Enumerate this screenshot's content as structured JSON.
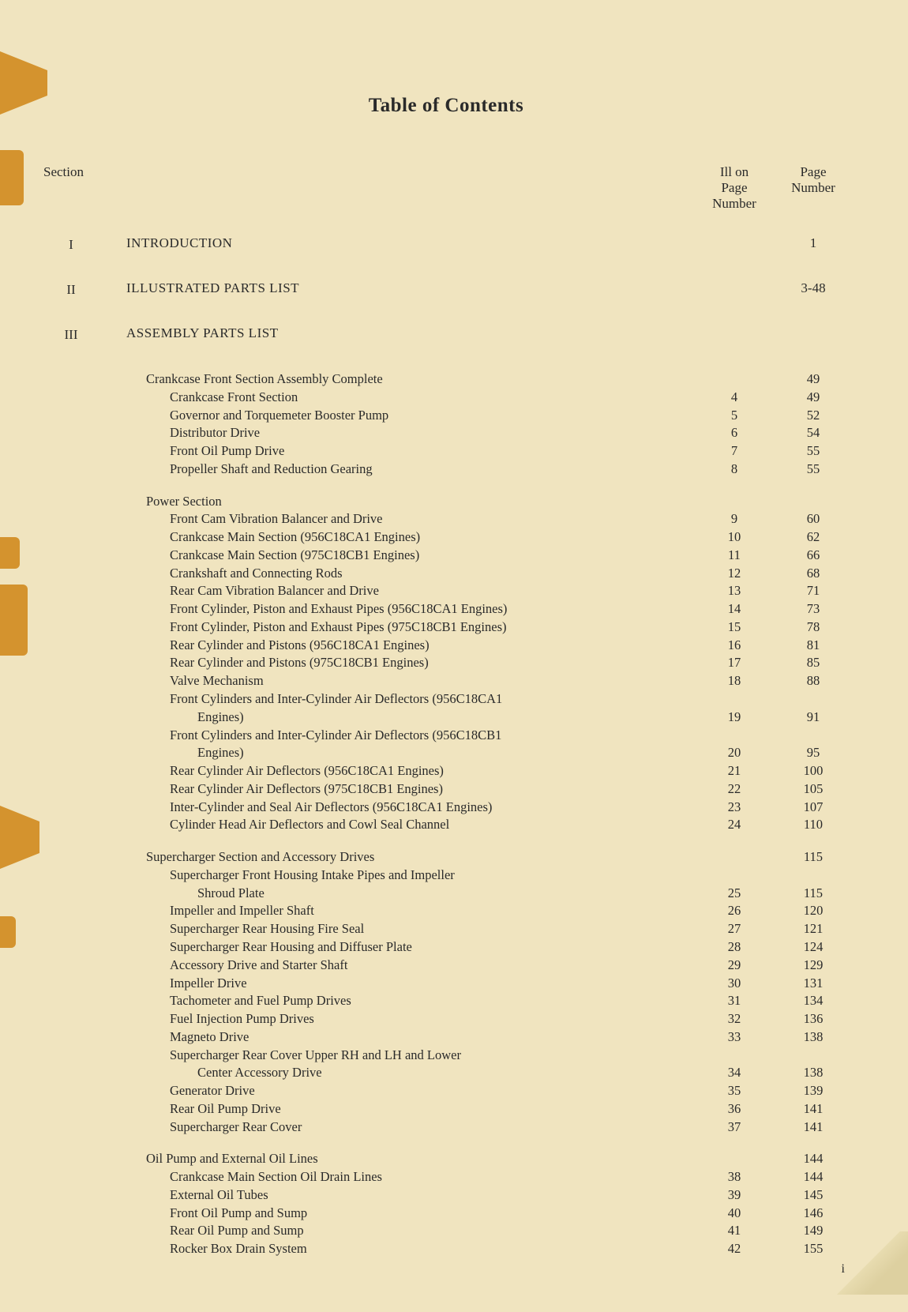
{
  "title": "Table of Contents",
  "headers": {
    "section": "Section",
    "ill": "Ill on\nPage\nNumber",
    "page": "Page\nNumber"
  },
  "sections": [
    {
      "num": "I",
      "title": "INTRODUCTION",
      "page": "1"
    },
    {
      "num": "II",
      "title": "ILLUSTRATED PARTS LIST",
      "page": "3-48"
    },
    {
      "num": "III",
      "title": "ASSEMBLY PARTS LIST",
      "page": ""
    }
  ],
  "groups": [
    {
      "heading": {
        "title": "Crankcase Front Section Assembly Complete",
        "ill": "",
        "page": "49"
      },
      "items": [
        {
          "title": "Crankcase Front Section",
          "ill": "4",
          "page": "49"
        },
        {
          "title": "Governor and Torquemeter Booster Pump",
          "ill": "5",
          "page": "52"
        },
        {
          "title": "Distributor Drive",
          "ill": "6",
          "page": "54"
        },
        {
          "title": "Front Oil Pump Drive",
          "ill": "7",
          "page": "55"
        },
        {
          "title": "Propeller Shaft and Reduction Gearing",
          "ill": "8",
          "page": "55"
        }
      ]
    },
    {
      "heading": {
        "title": "Power Section",
        "ill": "",
        "page": ""
      },
      "items": [
        {
          "title": "Front Cam Vibration Balancer and Drive",
          "ill": "9",
          "page": "60"
        },
        {
          "title": "Crankcase Main Section (956C18CA1 Engines)",
          "ill": "10",
          "page": "62"
        },
        {
          "title": "Crankcase Main Section (975C18CB1 Engines)",
          "ill": "11",
          "page": "66"
        },
        {
          "title": "Crankshaft and Connecting Rods",
          "ill": "12",
          "page": "68"
        },
        {
          "title": "Rear Cam Vibration Balancer and Drive",
          "ill": "13",
          "page": "71"
        },
        {
          "title": "Front Cylinder, Piston and Exhaust Pipes (956C18CA1 Engines)",
          "ill": "14",
          "page": "73"
        },
        {
          "title": "Front Cylinder, Piston and Exhaust Pipes (975C18CB1 Engines)",
          "ill": "15",
          "page": "78"
        },
        {
          "title": "Rear Cylinder and Pistons (956C18CA1 Engines)",
          "ill": "16",
          "page": "81"
        },
        {
          "title": "Rear Cylinder and Pistons (975C18CB1 Engines)",
          "ill": "17",
          "page": "85"
        },
        {
          "title": "Valve Mechanism",
          "ill": "18",
          "page": "88"
        },
        {
          "title": "Front Cylinders and Inter-Cylinder Air Deflectors (956C18CA1",
          "cont": "Engines)",
          "ill": "19",
          "page": "91"
        },
        {
          "title": "Front Cylinders and Inter-Cylinder Air Deflectors (956C18CB1",
          "cont": "Engines)",
          "ill": "20",
          "page": "95"
        },
        {
          "title": "Rear Cylinder Air Deflectors (956C18CA1 Engines)",
          "ill": "21",
          "page": "100"
        },
        {
          "title": "Rear Cylinder Air Deflectors (975C18CB1 Engines)",
          "ill": "22",
          "page": "105"
        },
        {
          "title": "Inter-Cylinder and Seal Air Deflectors (956C18CA1 Engines)",
          "ill": "23",
          "page": "107"
        },
        {
          "title": "Cylinder Head Air Deflectors and Cowl Seal Channel",
          "ill": "24",
          "page": "110"
        }
      ]
    },
    {
      "heading": {
        "title": "Supercharger Section and Accessory Drives",
        "ill": "",
        "page": "115"
      },
      "items": [
        {
          "title": "Supercharger Front Housing Intake Pipes and Impeller",
          "cont": "Shroud Plate",
          "ill": "25",
          "page": "115"
        },
        {
          "title": "Impeller and Impeller Shaft",
          "ill": "26",
          "page": "120"
        },
        {
          "title": "Supercharger Rear Housing Fire Seal",
          "ill": "27",
          "page": "121"
        },
        {
          "title": "Supercharger Rear Housing and Diffuser Plate",
          "ill": "28",
          "page": "124"
        },
        {
          "title": "Accessory Drive and Starter Shaft",
          "ill": "29",
          "page": "129"
        },
        {
          "title": "Impeller Drive",
          "ill": "30",
          "page": "131"
        },
        {
          "title": "Tachometer and Fuel Pump Drives",
          "ill": "31",
          "page": "134"
        },
        {
          "title": "Fuel Injection Pump Drives",
          "ill": "32",
          "page": "136"
        },
        {
          "title": "Magneto Drive",
          "ill": "33",
          "page": "138"
        },
        {
          "title": "Supercharger Rear Cover Upper RH and LH and Lower",
          "cont": "Center Accessory Drive",
          "ill": "34",
          "page": "138"
        },
        {
          "title": "Generator Drive",
          "ill": "35",
          "page": "139"
        },
        {
          "title": "Rear Oil Pump Drive",
          "ill": "36",
          "page": "141"
        },
        {
          "title": "Supercharger Rear Cover",
          "ill": "37",
          "page": "141"
        }
      ]
    },
    {
      "heading": {
        "title": "Oil Pump and External Oil Lines",
        "ill": "",
        "page": "144"
      },
      "items": [
        {
          "title": "Crankcase Main Section Oil Drain Lines",
          "ill": "38",
          "page": "144"
        },
        {
          "title": "External Oil Tubes",
          "ill": "39",
          "page": "145"
        },
        {
          "title": "Front Oil Pump and Sump",
          "ill": "40",
          "page": "146"
        },
        {
          "title": "Rear Oil Pump and Sump",
          "ill": "41",
          "page": "149"
        },
        {
          "title": "Rocker Box Drain System",
          "ill": "42",
          "page": "155"
        }
      ]
    }
  ],
  "bottom_page_num": "i",
  "colors": {
    "background": "#f0e4bf",
    "tab": "#d4932e",
    "text": "#2a2a2a"
  },
  "fonts": {
    "title_size": 25,
    "body_size": 17,
    "entry_size": 16.5
  }
}
